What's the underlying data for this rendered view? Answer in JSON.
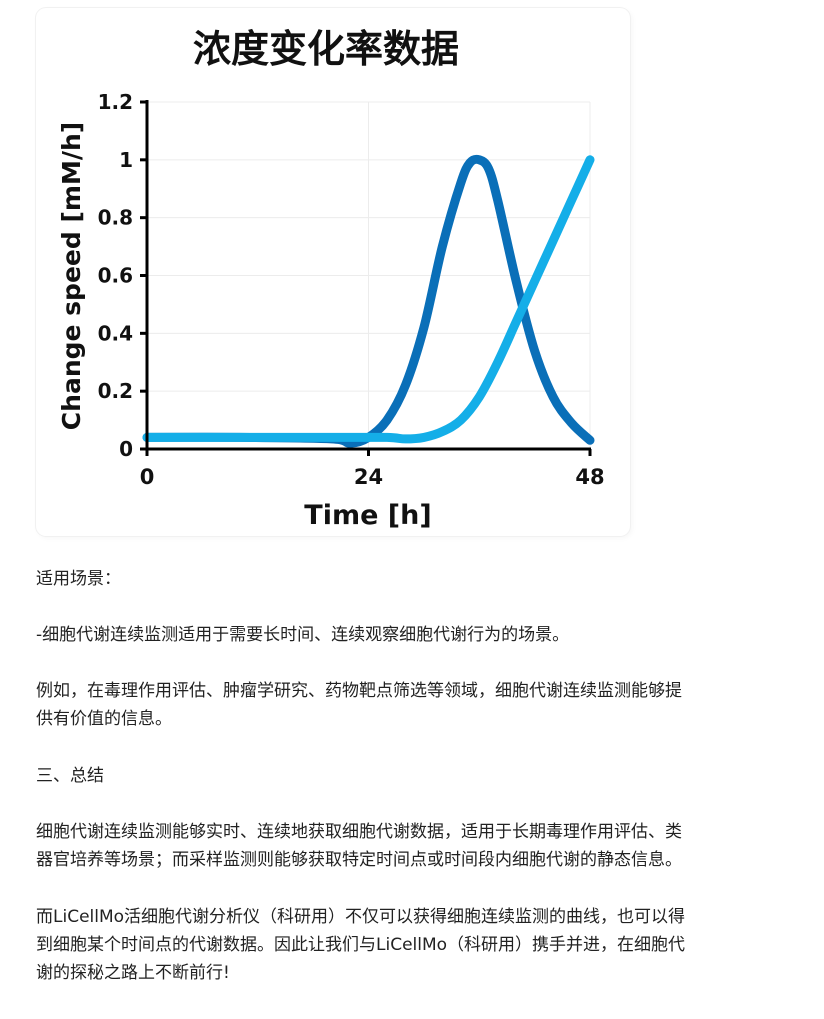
{
  "chart_data": {
    "type": "line",
    "title": "浓度变化率数据",
    "xlabel": "Time [h]",
    "ylabel": "Change speed [mM/h]",
    "xlim": [
      0,
      48
    ],
    "ylim": [
      0,
      1.2
    ],
    "xticks": [
      "0",
      "24",
      "48"
    ],
    "yticks": [
      "0",
      "0.2",
      "0.4",
      "0.6",
      "0.8",
      "1",
      "1.2"
    ],
    "grid": true,
    "legend": "none",
    "series": [
      {
        "color": "#0a6fb8",
        "x": [
          0,
          10,
          20,
          22,
          24,
          26,
          28,
          30,
          32,
          34,
          35,
          36,
          37,
          38,
          40,
          42,
          44,
          46,
          48
        ],
        "y": [
          0.04,
          0.04,
          0.035,
          0.02,
          0.04,
          0.1,
          0.22,
          0.42,
          0.7,
          0.92,
          0.99,
          1.0,
          0.97,
          0.86,
          0.58,
          0.34,
          0.18,
          0.09,
          0.03
        ]
      },
      {
        "color": "#14aee8",
        "x": [
          0,
          10,
          20,
          26,
          28,
          30,
          32,
          34,
          36,
          38,
          40,
          42,
          44,
          46,
          48
        ],
        "y": [
          0.04,
          0.04,
          0.04,
          0.04,
          0.035,
          0.04,
          0.06,
          0.1,
          0.18,
          0.3,
          0.44,
          0.58,
          0.72,
          0.86,
          1.0
        ]
      }
    ]
  },
  "text": {
    "p1": "适用场景：",
    "p2": "-细胞代谢连续监测适用于需要长时间、连续观察细胞代谢行为的场景。",
    "p3_l1": "例如，在毒理作用评估、肿瘤学研究、药物靶点筛选等领域，细胞代谢连续监测能够提",
    "p3_l2": "供有价值的信息。",
    "p4": "三、总结",
    "p5_l1": "细胞代谢连续监测能够实时、连续地获取细胞代谢数据，适用于长期毒理作用评估、类",
    "p5_l2": "器官培养等场景；而采样监测则能够获取特定时间点或时间段内细胞代谢的静态信息。",
    "p6_l1": "而LiCellMo活细胞代谢分析仪（科研用）不仅可以获得细胞连续监测的曲线，也可以得",
    "p6_l2": "到细胞某个时间点的代谢数据。因此让我们与LiCellMo（科研用）携手并进，在细胞代",
    "p6_l3": "谢的探秘之路上不断前行!"
  }
}
